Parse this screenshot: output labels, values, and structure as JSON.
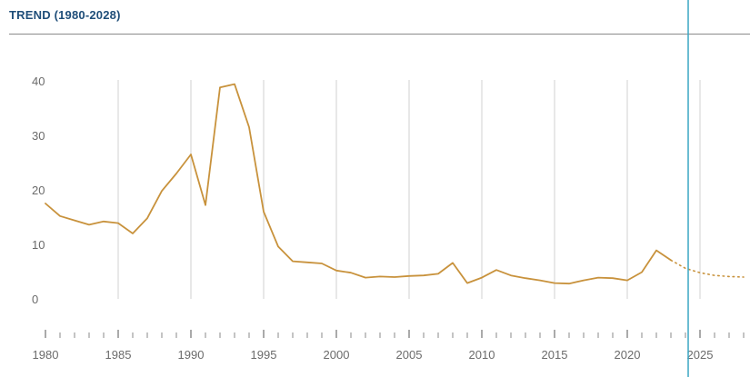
{
  "chart_data": {
    "type": "line",
    "title": "TREND (1980-2028)",
    "xlabel": "",
    "ylabel": "",
    "xlim": [
      1980,
      2028
    ],
    "ylim": [
      0,
      40
    ],
    "x_ticks": [
      1980,
      1985,
      1990,
      1995,
      2000,
      2005,
      2010,
      2015,
      2020,
      2025
    ],
    "y_ticks": [
      0,
      10,
      20,
      30,
      40
    ],
    "grid": "vertical",
    "current_year_marker": 2024,
    "colors": {
      "line": "#c8923c",
      "grid": "#e1e1e1",
      "marker": "#3aa6c4",
      "title": "#1f4e79",
      "text": "#6b6b6b"
    },
    "series": [
      {
        "style": "solid",
        "points": [
          [
            1980,
            17.5
          ],
          [
            1981,
            15.2
          ],
          [
            1982,
            14.4
          ],
          [
            1983,
            13.6
          ],
          [
            1984,
            14.2
          ],
          [
            1985,
            13.9
          ],
          [
            1986,
            12.0
          ],
          [
            1987,
            14.8
          ],
          [
            1988,
            19.8
          ],
          [
            1989,
            23.0
          ],
          [
            1990,
            26.5
          ],
          [
            1991,
            17.2
          ],
          [
            1992,
            38.8
          ],
          [
            1993,
            39.4
          ],
          [
            1994,
            31.5
          ],
          [
            1995,
            16.0
          ],
          [
            1996,
            9.6
          ],
          [
            1997,
            6.9
          ],
          [
            1998,
            6.7
          ],
          [
            1999,
            6.5
          ],
          [
            2000,
            5.2
          ],
          [
            2001,
            4.8
          ],
          [
            2002,
            3.9
          ],
          [
            2003,
            4.1
          ],
          [
            2004,
            4.0
          ],
          [
            2005,
            4.2
          ],
          [
            2006,
            4.3
          ],
          [
            2007,
            4.6
          ],
          [
            2008,
            6.6
          ],
          [
            2009,
            2.9
          ],
          [
            2010,
            3.9
          ],
          [
            2011,
            5.3
          ],
          [
            2012,
            4.3
          ],
          [
            2013,
            3.8
          ],
          [
            2014,
            3.4
          ],
          [
            2015,
            2.9
          ],
          [
            2016,
            2.8
          ],
          [
            2017,
            3.4
          ],
          [
            2018,
            3.9
          ],
          [
            2019,
            3.8
          ],
          [
            2020,
            3.4
          ],
          [
            2021,
            4.9
          ],
          [
            2022,
            8.9
          ],
          [
            2023,
            7.1
          ]
        ]
      },
      {
        "style": "dotted",
        "points": [
          [
            2023,
            7.1
          ],
          [
            2024,
            5.6
          ],
          [
            2025,
            4.8
          ],
          [
            2026,
            4.3
          ],
          [
            2027,
            4.1
          ],
          [
            2028,
            4.0
          ]
        ]
      }
    ]
  }
}
